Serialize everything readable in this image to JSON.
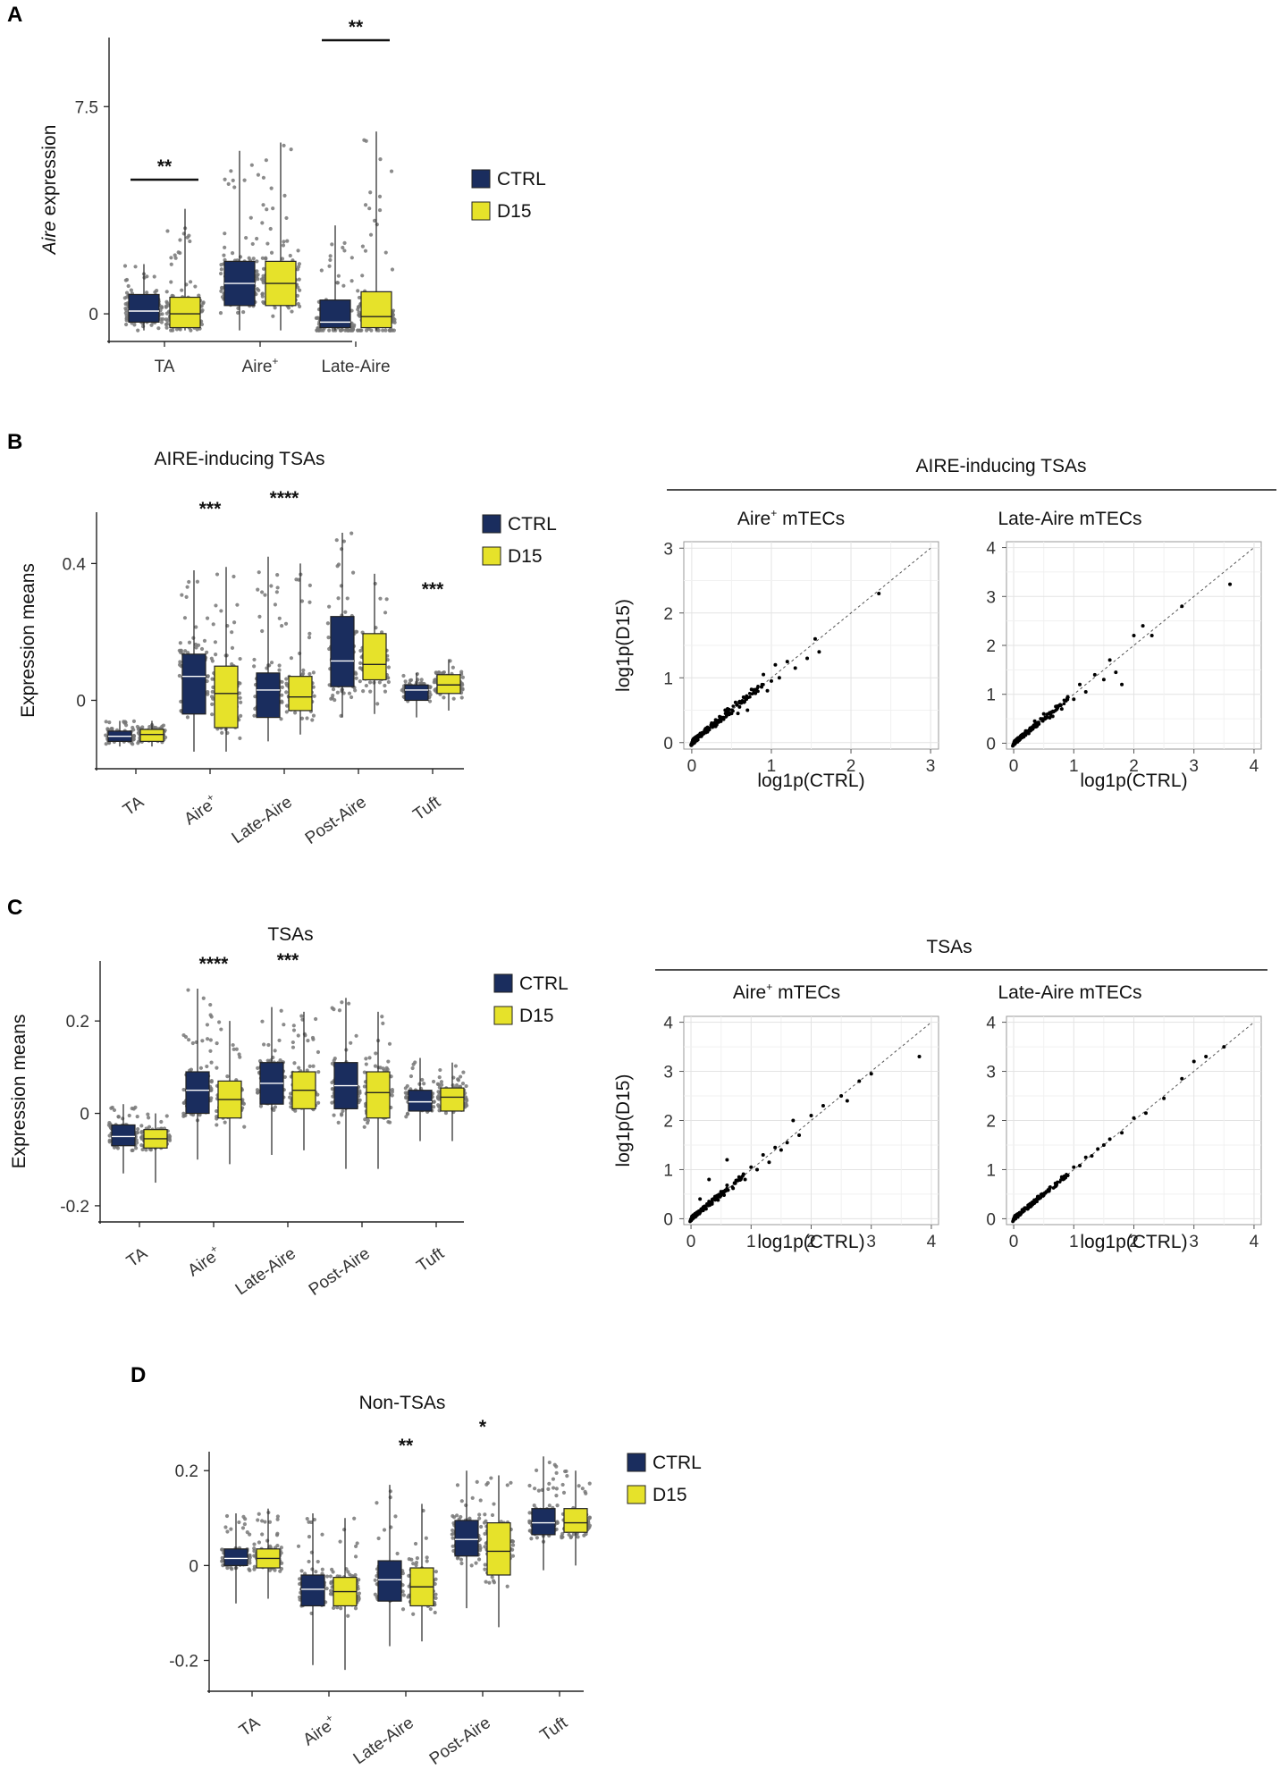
{
  "colors": {
    "ctrl": "#1a2d5e",
    "d15": "#e6e22a",
    "dots": "#777777"
  },
  "legend": {
    "ctrl": "CTRL",
    "d15": "D15"
  },
  "chart_data": [
    {
      "id": "A",
      "letter": "A",
      "type": "box",
      "title": "",
      "ylabel_italic": "Aire",
      "ylabel": "expression",
      "yticks": [
        0,
        7.5
      ],
      "ylim": [
        -1,
        10
      ],
      "categories": [
        "TA",
        "Aire",
        "Late-Aire"
      ],
      "cat_sup": [
        "",
        "+",
        ""
      ],
      "series": [
        {
          "name": "CTRL",
          "boxes": [
            {
              "q1": -0.3,
              "med": 0.1,
              "q3": 0.7,
              "lo": -0.6,
              "hi": 1.8
            },
            {
              "q1": 0.3,
              "med": 1.1,
              "q3": 1.9,
              "lo": -0.6,
              "hi": 5.9
            },
            {
              "q1": -0.5,
              "med": -0.3,
              "q3": 0.5,
              "lo": -0.6,
              "hi": 3.2
            }
          ]
        },
        {
          "name": "D15",
          "boxes": [
            {
              "q1": -0.5,
              "med": 0.0,
              "q3": 0.6,
              "lo": -0.6,
              "hi": 3.8
            },
            {
              "q1": 0.3,
              "med": 1.1,
              "q3": 1.9,
              "lo": -0.6,
              "hi": 6.2
            },
            {
              "q1": -0.5,
              "med": -0.1,
              "q3": 0.8,
              "lo": -0.6,
              "hi": 6.6
            }
          ]
        }
      ],
      "significance": [
        {
          "index": 0,
          "label": "**"
        },
        {
          "index": 2,
          "label": "**"
        }
      ]
    },
    {
      "id": "B",
      "letter": "B",
      "type": "box",
      "title": "AIRE-inducing TSAs",
      "ylabel": "Expression means",
      "yticks": [
        0,
        0.4
      ],
      "ylim": [
        -0.2,
        0.55
      ],
      "categories": [
        "TA",
        "Aire",
        "Late-Aire",
        "Post-Aire",
        "Tuft"
      ],
      "cat_sup": [
        "",
        "+",
        "",
        "",
        ""
      ],
      "series": [
        {
          "name": "CTRL",
          "boxes": [
            {
              "q1": -0.12,
              "med": -0.105,
              "q3": -0.09,
              "lo": -0.135,
              "hi": -0.06
            },
            {
              "q1": -0.04,
              "med": 0.07,
              "q3": 0.135,
              "lo": -0.15,
              "hi": 0.38
            },
            {
              "q1": -0.05,
              "med": 0.03,
              "q3": 0.08,
              "lo": -0.12,
              "hi": 0.42
            },
            {
              "q1": 0.04,
              "med": 0.115,
              "q3": 0.245,
              "lo": -0.05,
              "hi": 0.49
            },
            {
              "q1": 0.0,
              "med": 0.03,
              "q3": 0.045,
              "lo": -0.05,
              "hi": 0.08
            }
          ]
        },
        {
          "name": "D15",
          "boxes": [
            {
              "q1": -0.12,
              "med": -0.1,
              "q3": -0.085,
              "lo": -0.135,
              "hi": -0.06
            },
            {
              "q1": -0.08,
              "med": 0.02,
              "q3": 0.1,
              "lo": -0.15,
              "hi": 0.39
            },
            {
              "q1": -0.03,
              "med": 0.01,
              "q3": 0.07,
              "lo": -0.1,
              "hi": 0.4
            },
            {
              "q1": 0.06,
              "med": 0.105,
              "q3": 0.195,
              "lo": -0.04,
              "hi": 0.37
            },
            {
              "q1": 0.02,
              "med": 0.045,
              "q3": 0.075,
              "lo": -0.03,
              "hi": 0.12
            }
          ]
        }
      ],
      "significance": [
        {
          "index": 1,
          "label": "***"
        },
        {
          "index": 2,
          "label": "****"
        },
        {
          "index": 4,
          "label": "***"
        }
      ]
    },
    {
      "id": "C",
      "letter": "C",
      "type": "box",
      "title": "TSAs",
      "ylabel": "Expression means",
      "yticks": [
        -0.2,
        0,
        0.2
      ],
      "ylim": [
        -0.235,
        0.33
      ],
      "categories": [
        "TA",
        "Aire",
        "Late-Aire",
        "Post-Aire",
        "Tuft"
      ],
      "cat_sup": [
        "",
        "+",
        "",
        "",
        ""
      ],
      "series": [
        {
          "name": "CTRL",
          "boxes": [
            {
              "q1": -0.07,
              "med": -0.05,
              "q3": -0.025,
              "lo": -0.13,
              "hi": 0.02
            },
            {
              "q1": 0.0,
              "med": 0.05,
              "q3": 0.09,
              "lo": -0.1,
              "hi": 0.27
            },
            {
              "q1": 0.02,
              "med": 0.065,
              "q3": 0.11,
              "lo": -0.09,
              "hi": 0.23
            },
            {
              "q1": 0.01,
              "med": 0.06,
              "q3": 0.11,
              "lo": -0.12,
              "hi": 0.25
            },
            {
              "q1": 0.005,
              "med": 0.025,
              "q3": 0.05,
              "lo": -0.06,
              "hi": 0.12
            }
          ]
        },
        {
          "name": "D15",
          "boxes": [
            {
              "q1": -0.075,
              "med": -0.055,
              "q3": -0.035,
              "lo": -0.15,
              "hi": 0.0
            },
            {
              "q1": -0.01,
              "med": 0.03,
              "q3": 0.07,
              "lo": -0.11,
              "hi": 0.2
            },
            {
              "q1": 0.01,
              "med": 0.05,
              "q3": 0.09,
              "lo": -0.08,
              "hi": 0.22
            },
            {
              "q1": -0.01,
              "med": 0.045,
              "q3": 0.09,
              "lo": -0.12,
              "hi": 0.22
            },
            {
              "q1": 0.005,
              "med": 0.035,
              "q3": 0.055,
              "lo": -0.06,
              "hi": 0.11
            }
          ]
        }
      ],
      "significance": [
        {
          "index": 1,
          "label": "****"
        },
        {
          "index": 2,
          "label": "***"
        }
      ]
    },
    {
      "id": "D",
      "letter": "D",
      "type": "box",
      "title": "Non-TSAs",
      "ylabel": "",
      "yticks": [
        -0.2,
        0,
        0.2
      ],
      "ylim": [
        -0.265,
        0.24
      ],
      "categories": [
        "TA",
        "Aire",
        "Late-Aire",
        "Post-Aire",
        "Tuft"
      ],
      "cat_sup": [
        "",
        "+",
        "",
        "",
        ""
      ],
      "series": [
        {
          "name": "CTRL",
          "boxes": [
            {
              "q1": 0.0,
              "med": 0.015,
              "q3": 0.035,
              "lo": -0.08,
              "hi": 0.11
            },
            {
              "q1": -0.085,
              "med": -0.05,
              "q3": -0.02,
              "lo": -0.21,
              "hi": 0.11
            },
            {
              "q1": -0.075,
              "med": -0.03,
              "q3": 0.01,
              "lo": -0.17,
              "hi": 0.17
            },
            {
              "q1": 0.02,
              "med": 0.055,
              "q3": 0.095,
              "lo": -0.09,
              "hi": 0.2
            },
            {
              "q1": 0.065,
              "med": 0.09,
              "q3": 0.12,
              "lo": -0.01,
              "hi": 0.23
            }
          ]
        },
        {
          "name": "D15",
          "boxes": [
            {
              "q1": -0.005,
              "med": 0.015,
              "q3": 0.035,
              "lo": -0.07,
              "hi": 0.12
            },
            {
              "q1": -0.085,
              "med": -0.055,
              "q3": -0.025,
              "lo": -0.22,
              "hi": 0.1
            },
            {
              "q1": -0.085,
              "med": -0.045,
              "q3": -0.005,
              "lo": -0.16,
              "hi": 0.13
            },
            {
              "q1": -0.02,
              "med": 0.03,
              "q3": 0.09,
              "lo": -0.13,
              "hi": 0.19
            },
            {
              "q1": 0.07,
              "med": 0.09,
              "q3": 0.12,
              "lo": 0.0,
              "hi": 0.2
            }
          ]
        }
      ],
      "significance": [
        {
          "index": 2,
          "label": "**"
        },
        {
          "index": 3,
          "label": "*"
        }
      ]
    },
    {
      "id": "B_scatter",
      "type": "scatter",
      "group_title": "AIRE-inducing TSAs",
      "ylabel": "log1p(D15)",
      "xlabel": "log1p(CTRL)",
      "panels": [
        {
          "title_main": "Aire",
          "title_sup": "+",
          "title_rest": " mTECs",
          "ticks": [
            0,
            1,
            2,
            3
          ],
          "lim": [
            -0.1,
            3.1
          ],
          "diag_max": 3,
          "points": [
            [
              0.05,
              0.06
            ],
            [
              0.1,
              0.12
            ],
            [
              0.15,
              0.14
            ],
            [
              0.2,
              0.18
            ],
            [
              0.25,
              0.3
            ],
            [
              0.3,
              0.25
            ],
            [
              0.35,
              0.4
            ],
            [
              0.4,
              0.36
            ],
            [
              0.45,
              0.52
            ],
            [
              0.5,
              0.45
            ],
            [
              0.55,
              0.62
            ],
            [
              0.6,
              0.55
            ],
            [
              0.65,
              0.7
            ],
            [
              0.7,
              0.5
            ],
            [
              0.75,
              0.82
            ],
            [
              0.8,
              0.76
            ],
            [
              0.9,
              1.05
            ],
            [
              1.0,
              0.95
            ],
            [
              1.05,
              1.2
            ],
            [
              1.1,
              1.0
            ],
            [
              1.2,
              1.25
            ],
            [
              1.3,
              1.15
            ],
            [
              1.45,
              1.3
            ],
            [
              1.6,
              1.4
            ],
            [
              2.35,
              2.3
            ],
            [
              0.3,
              0.35
            ],
            [
              0.22,
              0.2
            ],
            [
              0.18,
              0.22
            ],
            [
              0.42,
              0.5
            ],
            [
              0.58,
              0.45
            ],
            [
              0.95,
              0.8
            ],
            [
              0.12,
              0.1
            ],
            [
              1.55,
              1.6
            ]
          ]
        },
        {
          "title_main": "Late-Aire",
          "title_sup": "",
          "title_rest": " mTECs",
          "ticks": [
            0,
            1,
            2,
            3,
            4
          ],
          "lim": [
            -0.12,
            4.12
          ],
          "diag_max": 4,
          "points": [
            [
              0.05,
              0.06
            ],
            [
              0.1,
              0.12
            ],
            [
              0.15,
              0.18
            ],
            [
              0.2,
              0.25
            ],
            [
              0.3,
              0.28
            ],
            [
              0.35,
              0.45
            ],
            [
              0.4,
              0.38
            ],
            [
              0.5,
              0.6
            ],
            [
              0.6,
              0.52
            ],
            [
              0.7,
              0.75
            ],
            [
              0.8,
              0.7
            ],
            [
              0.9,
              0.95
            ],
            [
              1.0,
              0.9
            ],
            [
              1.1,
              1.2
            ],
            [
              1.2,
              1.05
            ],
            [
              1.35,
              1.4
            ],
            [
              1.5,
              1.3
            ],
            [
              1.6,
              1.7
            ],
            [
              1.7,
              1.45
            ],
            [
              1.8,
              1.2
            ],
            [
              2.0,
              2.2
            ],
            [
              2.15,
              2.4
            ],
            [
              2.3,
              2.2
            ],
            [
              2.8,
              2.8
            ],
            [
              3.6,
              3.25
            ],
            [
              0.25,
              0.2
            ],
            [
              0.45,
              0.5
            ],
            [
              0.65,
              0.55
            ]
          ]
        }
      ]
    },
    {
      "id": "C_scatter",
      "type": "scatter",
      "group_title": "TSAs",
      "ylabel": "log1p(D15)",
      "xlabel": "log1p(CTRL)",
      "panels": [
        {
          "title_main": "Aire",
          "title_sup": "+",
          "title_rest": " mTECs",
          "ticks": [
            0,
            1,
            2,
            3,
            4
          ],
          "lim": [
            -0.12,
            4.12
          ],
          "diag_max": 4,
          "points": [
            [
              0.05,
              0.05
            ],
            [
              0.1,
              0.1
            ],
            [
              0.15,
              0.15
            ],
            [
              0.2,
              0.22
            ],
            [
              0.25,
              0.2
            ],
            [
              0.3,
              0.35
            ],
            [
              0.35,
              0.3
            ],
            [
              0.4,
              0.45
            ],
            [
              0.45,
              0.38
            ],
            [
              0.5,
              0.55
            ],
            [
              0.55,
              0.48
            ],
            [
              0.6,
              0.68
            ],
            [
              0.7,
              0.62
            ],
            [
              0.8,
              0.85
            ],
            [
              0.9,
              0.8
            ],
            [
              1.0,
              1.05
            ],
            [
              1.1,
              1.0
            ],
            [
              1.2,
              1.3
            ],
            [
              1.3,
              1.15
            ],
            [
              1.4,
              1.45
            ],
            [
              1.5,
              1.4
            ],
            [
              1.6,
              1.55
            ],
            [
              1.8,
              1.7
            ],
            [
              2.0,
              2.1
            ],
            [
              2.2,
              2.3
            ],
            [
              2.5,
              2.5
            ],
            [
              2.8,
              2.8
            ],
            [
              3.0,
              2.95
            ],
            [
              3.8,
              3.3
            ],
            [
              0.3,
              0.8
            ],
            [
              0.6,
              1.2
            ],
            [
              1.7,
              2.0
            ],
            [
              2.6,
              2.4
            ],
            [
              0.15,
              0.4
            ]
          ]
        },
        {
          "title_main": "Late-Aire",
          "title_sup": "",
          "title_rest": " mTECs",
          "ticks": [
            0,
            1,
            2,
            3,
            4
          ],
          "lim": [
            -0.12,
            4.12
          ],
          "diag_max": 4,
          "points": [
            [
              0.05,
              0.05
            ],
            [
              0.1,
              0.12
            ],
            [
              0.15,
              0.14
            ],
            [
              0.2,
              0.22
            ],
            [
              0.25,
              0.24
            ],
            [
              0.3,
              0.32
            ],
            [
              0.35,
              0.33
            ],
            [
              0.4,
              0.45
            ],
            [
              0.5,
              0.48
            ],
            [
              0.6,
              0.62
            ],
            [
              0.7,
              0.68
            ],
            [
              0.8,
              0.85
            ],
            [
              0.9,
              0.88
            ],
            [
              1.0,
              1.05
            ],
            [
              1.1,
              1.08
            ],
            [
              1.2,
              1.25
            ],
            [
              1.3,
              1.28
            ],
            [
              1.4,
              1.42
            ],
            [
              1.5,
              1.5
            ],
            [
              1.6,
              1.62
            ],
            [
              1.8,
              1.75
            ],
            [
              2.0,
              2.05
            ],
            [
              2.2,
              2.15
            ],
            [
              2.5,
              2.45
            ],
            [
              2.8,
              2.85
            ],
            [
              3.0,
              3.2
            ],
            [
              3.5,
              3.5
            ],
            [
              3.2,
              3.3
            ]
          ]
        }
      ]
    }
  ]
}
